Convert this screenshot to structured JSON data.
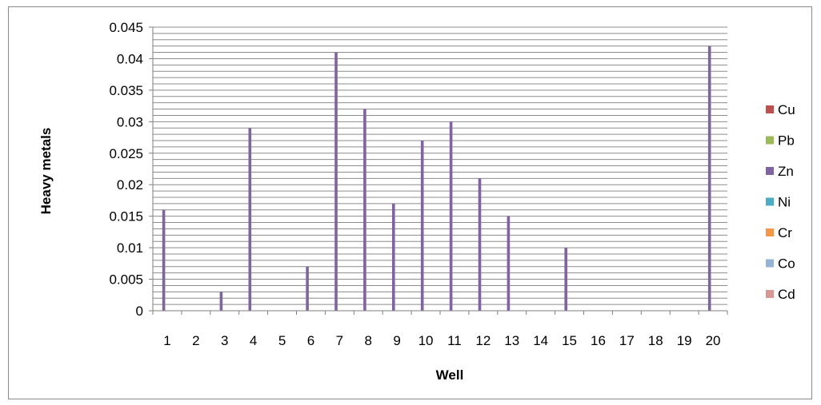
{
  "chart_data": {
    "type": "bar",
    "title": "",
    "xlabel": "Well",
    "ylabel": "Heavy metals",
    "ylim": [
      0,
      0.045
    ],
    "y_ticks": [
      "0",
      "0.005",
      "0.01",
      "0.015",
      "0.02",
      "0.025",
      "0.03",
      "0.035",
      "0.04",
      "0.045"
    ],
    "minor_gridline_step": 0.001,
    "grid": true,
    "legend_position": "right",
    "categories": [
      "1",
      "2",
      "3",
      "4",
      "5",
      "6",
      "7",
      "8",
      "9",
      "10",
      "11",
      "12",
      "13",
      "14",
      "15",
      "16",
      "17",
      "18",
      "19",
      "20"
    ],
    "series": [
      {
        "name": "Cu",
        "color": "#c0504d",
        "values": [
          0,
          0,
          0,
          0,
          0,
          0,
          0,
          0,
          0,
          0,
          0,
          0,
          0,
          0,
          0,
          0,
          0,
          0,
          0,
          0
        ]
      },
      {
        "name": "Pb",
        "color": "#9bbb59",
        "values": [
          0,
          0,
          0,
          0,
          0,
          0,
          0,
          0,
          0,
          0,
          0,
          0,
          0,
          0,
          0,
          0,
          0,
          0,
          0,
          0
        ]
      },
      {
        "name": "Zn",
        "color": "#8064a2",
        "values": [
          0.016,
          0,
          0.003,
          0.029,
          0,
          0.007,
          0.041,
          0.032,
          0.017,
          0.027,
          0.03,
          0.021,
          0.015,
          0,
          0.01,
          0,
          0,
          0,
          0,
          0.042
        ]
      },
      {
        "name": "Ni",
        "color": "#4bacc6",
        "values": [
          0,
          0,
          0,
          0,
          0,
          0,
          0,
          0,
          0,
          0,
          0,
          0,
          0,
          0,
          0,
          0,
          0,
          0,
          0,
          0
        ]
      },
      {
        "name": "Cr",
        "color": "#f79646",
        "values": [
          0,
          0,
          0,
          0,
          0,
          0,
          0,
          0,
          0,
          0,
          0,
          0,
          0,
          0,
          0,
          0,
          0,
          0,
          0,
          0
        ]
      },
      {
        "name": "Co",
        "color": "#95b3d7",
        "values": [
          0,
          0,
          0,
          0,
          0,
          0,
          0,
          0,
          0,
          0,
          0,
          0,
          0,
          0,
          0,
          0,
          0,
          0,
          0,
          0
        ]
      },
      {
        "name": "Cd",
        "color": "#da9694",
        "values": [
          0,
          0,
          0,
          0,
          0,
          0,
          0,
          0,
          0,
          0,
          0,
          0,
          0,
          0,
          0,
          0,
          0,
          0,
          0,
          0
        ]
      }
    ]
  }
}
